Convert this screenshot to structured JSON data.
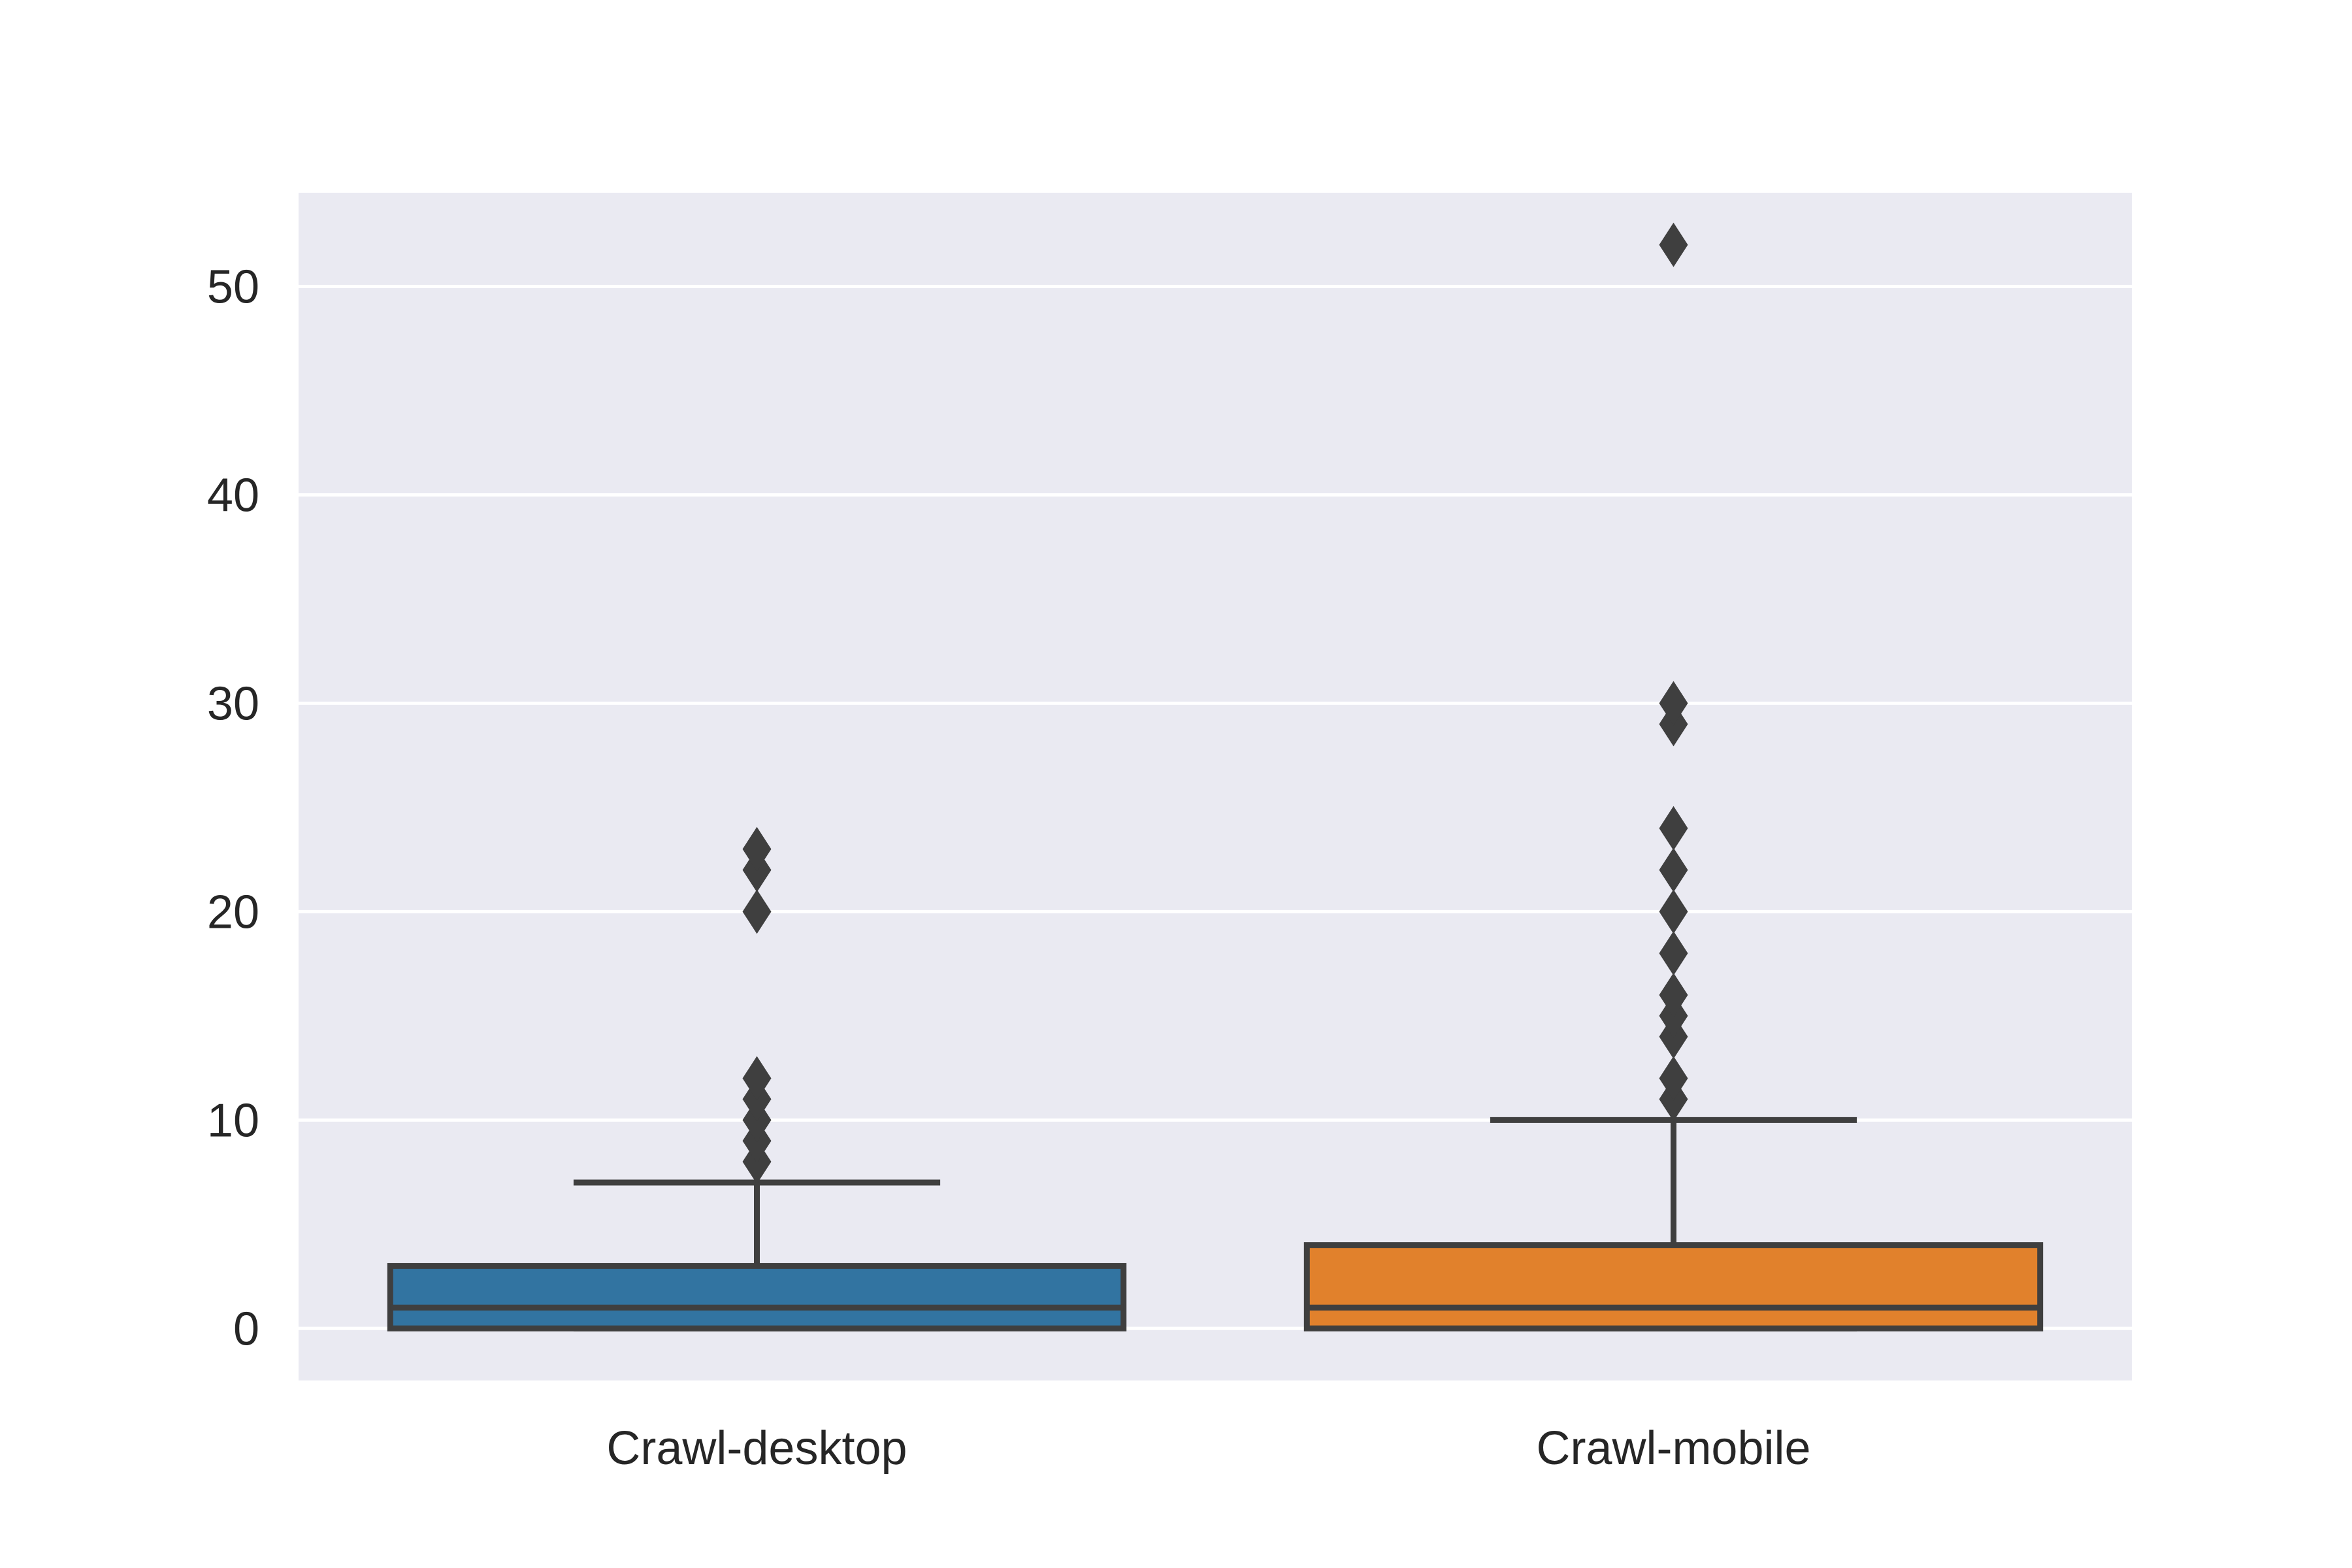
{
  "chart_data": {
    "type": "box",
    "title": "",
    "xlabel": "",
    "ylabel": "",
    "ylim": [
      -2.5,
      54.5
    ],
    "yticks": [
      0,
      10,
      20,
      30,
      40,
      50
    ],
    "ytick_labels": [
      "0",
      "10",
      "20",
      "30",
      "40",
      "50"
    ],
    "grid": true,
    "background": "#eaeaf2",
    "categories": [
      "Crawl-desktop",
      "Crawl-mobile"
    ],
    "boxes": [
      {
        "category": "Crawl-desktop",
        "color": "#3274a1",
        "whisker_low": 0,
        "q1": 0,
        "median": 1,
        "q3": 3,
        "whisker_high": 7,
        "outliers": [
          8,
          9,
          10,
          11,
          12,
          20,
          22,
          23
        ]
      },
      {
        "category": "Crawl-mobile",
        "color": "#e1812c",
        "whisker_low": 0,
        "q1": 0,
        "median": 1,
        "q3": 4,
        "whisker_high": 10,
        "outliers": [
          11,
          12,
          14,
          15,
          16,
          18,
          20,
          22,
          24,
          29,
          30,
          52
        ]
      }
    ]
  }
}
